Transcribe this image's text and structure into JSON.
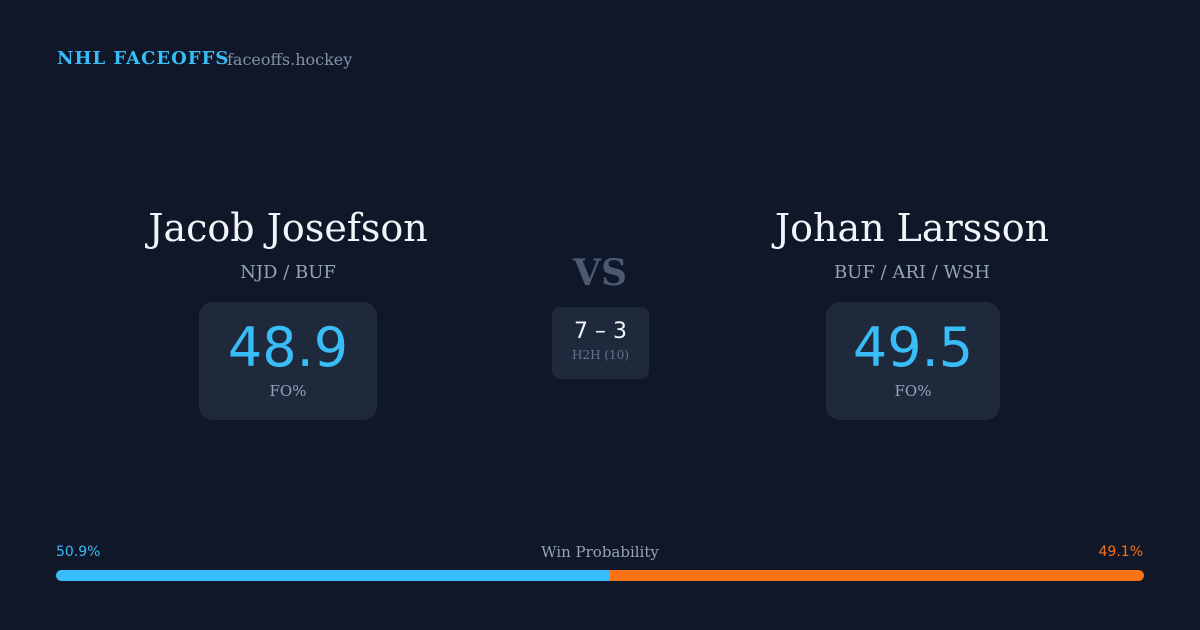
{
  "header": {
    "brand": "NHL FACEOFFS",
    "site": "faceoffs.hockey"
  },
  "players": [
    {
      "name": "Jacob Josefson",
      "teams": "NJD / BUF",
      "fo_value": "48.9",
      "fo_label": "FO%"
    },
    {
      "name": "Johan Larsson",
      "teams": "BUF / ARI / WSH",
      "fo_value": "49.5",
      "fo_label": "FO%"
    }
  ],
  "versus": "VS",
  "h2h": {
    "score": "7 – 3",
    "label": "H2H (10)"
  },
  "win_probability": {
    "label": "Win Probability",
    "values": [
      50.9,
      49.1
    ],
    "value_labels": [
      "50.9%",
      "49.1%"
    ],
    "colors": [
      "#38bdf8",
      "#f97316"
    ]
  }
}
